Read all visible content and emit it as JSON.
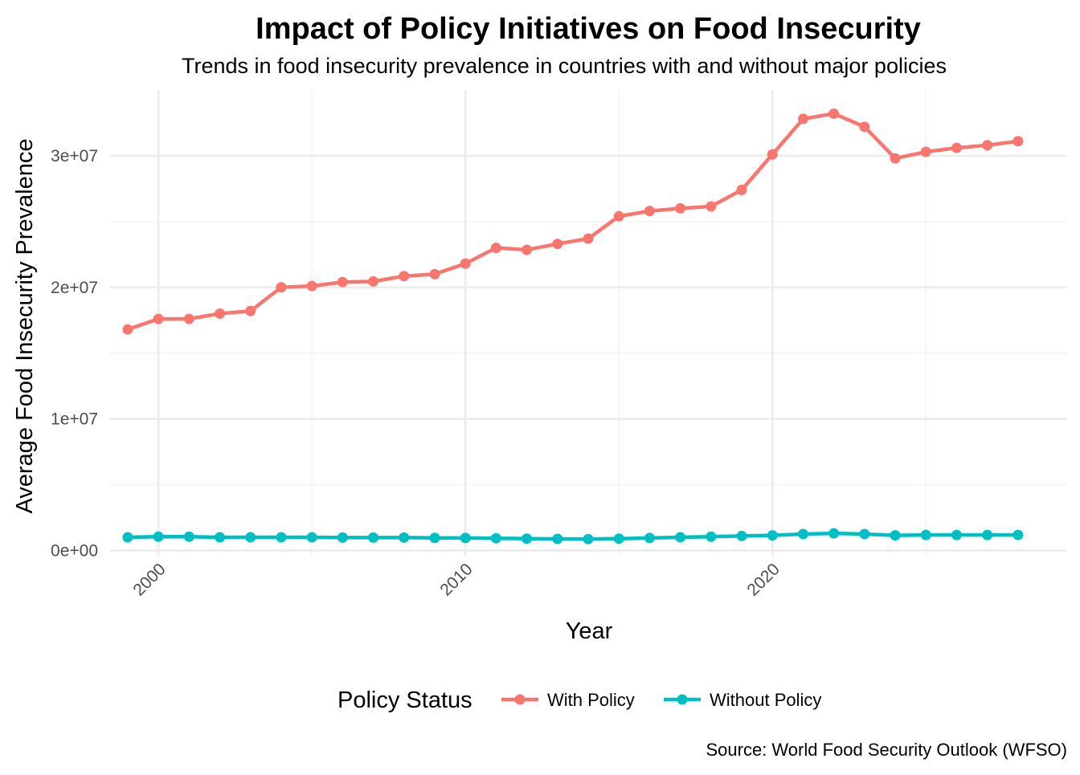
{
  "chart_data": {
    "type": "line",
    "title": "Impact of Policy Initiatives on Food Insecurity",
    "subtitle": "Trends in food insecurity prevalence in countries with and without major policies",
    "xlabel": "Year",
    "ylabel": "Average Food Insecurity Prevalence",
    "caption": "Source: World Food Security Outlook (WFSO)",
    "legend_title": "Policy Status",
    "legend_position": "bottom",
    "grid": true,
    "xlim": [
      1998.4,
      2029.6
    ],
    "ylim": [
      -400000,
      35000000
    ],
    "x_ticks": [
      2000,
      2010,
      2020
    ],
    "x_tick_labels": [
      "2000",
      "2010",
      "2020"
    ],
    "x_minor_ticks": [
      2005,
      2015,
      2025
    ],
    "y_ticks": [
      0,
      10000000,
      20000000,
      30000000
    ],
    "y_tick_labels": [
      "0e+00",
      "1e+07",
      "2e+07",
      "3e+07"
    ],
    "y_minor_ticks": [
      5000000,
      15000000,
      25000000
    ],
    "x": [
      1999,
      2000,
      2001,
      2002,
      2003,
      2004,
      2005,
      2006,
      2007,
      2008,
      2009,
      2010,
      2011,
      2012,
      2013,
      2014,
      2015,
      2016,
      2017,
      2018,
      2019,
      2020,
      2021,
      2022,
      2023,
      2024,
      2025,
      2026,
      2027,
      2028
    ],
    "series": [
      {
        "name": "With Policy",
        "color": "#F8766D",
        "values": [
          16800000,
          17600000,
          17600000,
          18000000,
          18200000,
          20000000,
          20100000,
          20400000,
          20450000,
          20850000,
          21000000,
          21800000,
          23000000,
          22850000,
          23300000,
          23700000,
          25400000,
          25800000,
          26000000,
          26150000,
          27400000,
          30100000,
          32800000,
          33200000,
          32200000,
          29800000,
          30300000,
          30600000,
          30800000,
          31100000
        ]
      },
      {
        "name": "Without Policy",
        "color": "#00BFC4",
        "values": [
          1000000,
          1050000,
          1050000,
          1000000,
          1000000,
          1000000,
          1000000,
          980000,
          980000,
          980000,
          960000,
          950000,
          930000,
          900000,
          880000,
          870000,
          900000,
          950000,
          1000000,
          1050000,
          1100000,
          1150000,
          1250000,
          1300000,
          1250000,
          1150000,
          1180000,
          1180000,
          1180000,
          1180000
        ]
      }
    ]
  }
}
